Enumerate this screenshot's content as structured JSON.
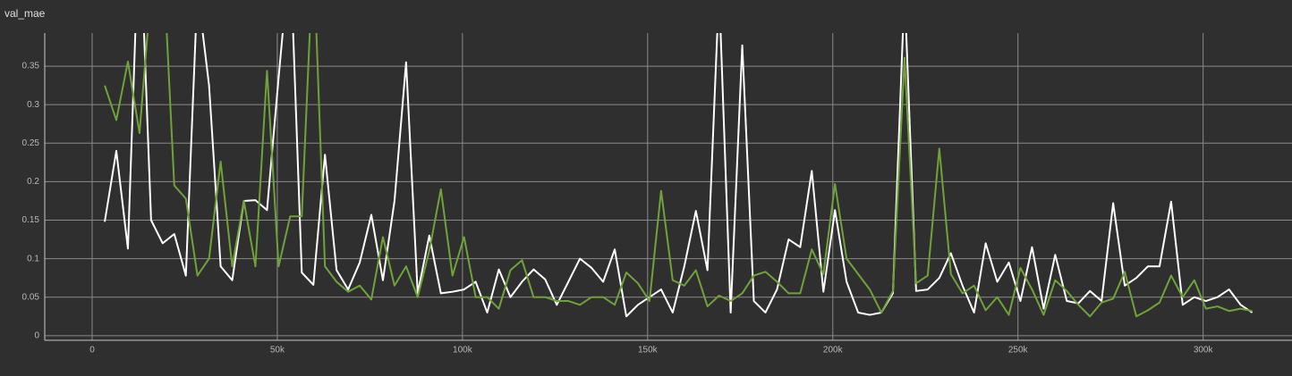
{
  "chart_data": {
    "type": "line",
    "title": "val_mae",
    "x": [
      3400,
      6530,
      9660,
      12790,
      15920,
      19050,
      22180,
      25310,
      28440,
      31570,
      34700,
      37830,
      40960,
      44090,
      47220,
      50350,
      53480,
      56610,
      59740,
      62870,
      66000,
      69130,
      72260,
      75390,
      78520,
      81650,
      84780,
      87910,
      91040,
      94170,
      97300,
      100430,
      103560,
      106690,
      109820,
      112950,
      116080,
      119210,
      122340,
      125470,
      128600,
      131730,
      134860,
      137990,
      141120,
      144250,
      147380,
      150510,
      153640,
      156770,
      159900,
      163030,
      166160,
      169290,
      172420,
      175550,
      178680,
      181810,
      184940,
      188070,
      191200,
      194330,
      197460,
      200590,
      203720,
      206850,
      209980,
      213110,
      216240,
      219370,
      222500,
      225630,
      228760,
      231890,
      235020,
      238150,
      241280,
      244410,
      247540,
      250670,
      253800,
      256930,
      260060,
      263190,
      266320,
      269450,
      272580,
      275710,
      278840,
      281970,
      285100,
      288230,
      291360,
      294490,
      297620,
      300750,
      303880,
      307010,
      310140,
      313270
    ],
    "series": [
      {
        "color": "#ffffff",
        "values": [
          0.148,
          0.24,
          0.113,
          0.55,
          0.15,
          0.12,
          0.132,
          0.078,
          0.45,
          0.325,
          0.09,
          0.072,
          0.175,
          0.176,
          0.163,
          0.335,
          0.5,
          0.082,
          0.066,
          0.235,
          0.085,
          0.06,
          0.095,
          0.157,
          0.072,
          0.175,
          0.355,
          0.055,
          0.13,
          0.055,
          0.057,
          0.06,
          0.07,
          0.03,
          0.086,
          0.05,
          0.07,
          0.086,
          0.073,
          0.04,
          0.07,
          0.1,
          0.088,
          0.07,
          0.112,
          0.025,
          0.04,
          0.05,
          0.06,
          0.03,
          0.09,
          0.162,
          0.085,
          0.45,
          0.03,
          0.377,
          0.045,
          0.03,
          0.06,
          0.125,
          0.115,
          0.214,
          0.057,
          0.163,
          0.07,
          0.03,
          0.027,
          0.03,
          0.055,
          0.45,
          0.058,
          0.06,
          0.075,
          0.107,
          0.065,
          0.03,
          0.12,
          0.07,
          0.095,
          0.045,
          0.115,
          0.035,
          0.105,
          0.045,
          0.042,
          0.058,
          0.045,
          0.172,
          0.065,
          0.075,
          0.09,
          0.09,
          0.174,
          0.04,
          0.05,
          0.045,
          0.05,
          0.06,
          0.04,
          0.03
        ]
      },
      {
        "color": "#6fa33a",
        "values": [
          0.325,
          0.28,
          0.356,
          0.263,
          0.45,
          0.5,
          0.195,
          0.178,
          0.078,
          0.1,
          0.226,
          0.09,
          0.175,
          0.09,
          0.344,
          0.09,
          0.155,
          0.155,
          0.5,
          0.09,
          0.07,
          0.057,
          0.065,
          0.047,
          0.128,
          0.065,
          0.09,
          0.05,
          0.11,
          0.19,
          0.078,
          0.128,
          0.05,
          0.05,
          0.035,
          0.085,
          0.098,
          0.05,
          0.05,
          0.045,
          0.045,
          0.04,
          0.05,
          0.05,
          0.04,
          0.082,
          0.068,
          0.045,
          0.188,
          0.072,
          0.065,
          0.085,
          0.038,
          0.052,
          0.045,
          0.055,
          0.078,
          0.083,
          0.07,
          0.055,
          0.055,
          0.112,
          0.08,
          0.197,
          0.1,
          0.08,
          0.06,
          0.03,
          0.058,
          0.361,
          0.068,
          0.078,
          0.243,
          0.08,
          0.055,
          0.065,
          0.033,
          0.05,
          0.027,
          0.088,
          0.06,
          0.027,
          0.072,
          0.058,
          0.04,
          0.025,
          0.043,
          0.048,
          0.083,
          0.025,
          0.033,
          0.043,
          0.078,
          0.05,
          0.072,
          0.035,
          0.038,
          0.032,
          0.035,
          0.032
        ]
      }
    ],
    "xlim": [
      -12800,
      324000
    ],
    "ylim": [
      -0.006,
      0.393
    ],
    "xticks": [
      0,
      {
        "value": 50000,
        "label": "50k"
      },
      {
        "value": 100000,
        "label": "100k"
      },
      {
        "value": 150000,
        "label": "150k"
      },
      {
        "value": 200000,
        "label": "200k"
      },
      {
        "value": 250000,
        "label": "250k"
      },
      {
        "value": 300000,
        "label": "300k"
      }
    ],
    "yticks": [
      0,
      0.05,
      0.1,
      0.15,
      0.2,
      0.25,
      0.3,
      0.35
    ],
    "grid": true
  }
}
